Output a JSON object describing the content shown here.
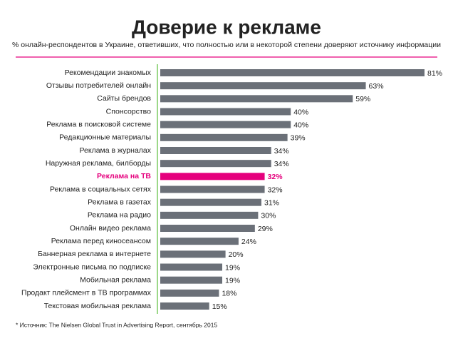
{
  "chart_data": {
    "type": "bar",
    "orientation": "horizontal",
    "title": "Доверие к рекламе",
    "subtitle": "% онлайн-респондентов в Украине, ответивших, что полностью или в некоторой степени доверяют источнику информации",
    "source": "* Источник: The Nielsen Global Trust in Advertising Report, сентябрь 2015",
    "categories": [
      "Рекомендации знакомых",
      "Отзывы потребителей онлайн",
      "Сайты брендов",
      "Спонсорство",
      "Реклама в поисковой системе",
      "Редакционные материалы",
      "Реклама в журналах",
      "Наружная реклама, билборды",
      "Реклама на ТВ",
      "Реклама в социальных сетях",
      "Реклама в газетах",
      "Реклама на радио",
      "Онлайн видео реклама",
      "Реклама перед киносеансом",
      "Баннерная реклама в интернете",
      "Электронные письма по подписке",
      "Мобильная реклама",
      "Продакт плейсмент в ТВ программах",
      "Текстовая мобильная реклама"
    ],
    "values": [
      81,
      63,
      59,
      40,
      40,
      39,
      34,
      34,
      32,
      32,
      31,
      30,
      29,
      24,
      20,
      19,
      19,
      18,
      15
    ],
    "value_labels": [
      "81%",
      "63%",
      "59%",
      "40%",
      "40%",
      "39%",
      "34%",
      "34%",
      "32%",
      "32%",
      "31%",
      "30%",
      "29%",
      "24%",
      "20%",
      "19%",
      "19%",
      "18%",
      "15%"
    ],
    "color": "#6b7078",
    "colors": [
      "#6b7078",
      "#6b7078",
      "#6b7078",
      "#6b7078",
      "#6b7078",
      "#6b7078",
      "#6b7078",
      "#6b7078",
      "#e5007d",
      "#6b7078",
      "#6b7078",
      "#6b7078",
      "#6b7078",
      "#6b7078",
      "#6b7078",
      "#6b7078",
      "#6b7078",
      "#6b7078",
      "#6b7078"
    ]
  }
}
